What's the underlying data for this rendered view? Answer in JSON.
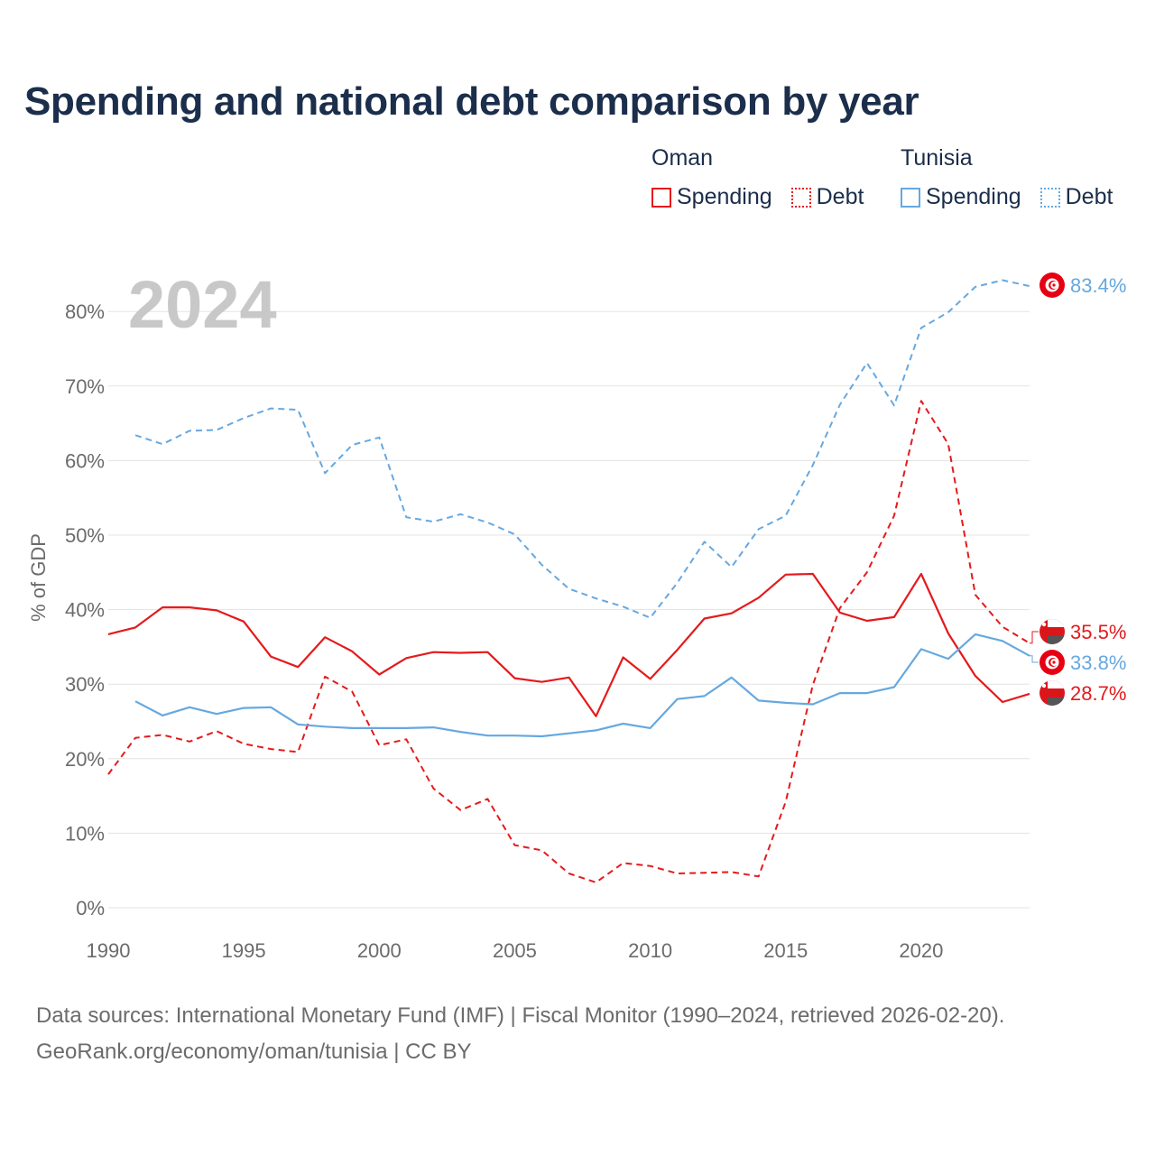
{
  "title": "Spending and national debt comparison by year",
  "legend": {
    "groups": [
      {
        "name": "Oman",
        "items": [
          {
            "label": "Spending",
            "style": "solid",
            "color": "#e41a1c"
          },
          {
            "label": "Debt",
            "style": "dotted",
            "color": "#e41a1c"
          }
        ]
      },
      {
        "name": "Tunisia",
        "items": [
          {
            "label": "Spending",
            "style": "solid",
            "color": "#66a8e0"
          },
          {
            "label": "Debt",
            "style": "dotted",
            "color": "#66a8e0"
          }
        ]
      }
    ]
  },
  "colors": {
    "oman": "#e41a1c",
    "tunisia": "#66a8e0",
    "grid": "#e3e3e3",
    "axis_text": "#6b6b6b",
    "year_watermark": "#c8c8c8"
  },
  "chart_data": {
    "type": "line",
    "year_label": "2024",
    "ylabel": "% of GDP",
    "xlim": [
      1990,
      2024
    ],
    "ylim": [
      0,
      85
    ],
    "yticks": [
      0,
      10,
      20,
      30,
      40,
      50,
      60,
      70,
      80
    ],
    "ytick_labels": [
      "0%",
      "10%",
      "20%",
      "30%",
      "40%",
      "50%",
      "60%",
      "70%",
      "80%"
    ],
    "xticks": [
      1990,
      1995,
      2000,
      2005,
      2010,
      2015,
      2020
    ],
    "xtick_labels": [
      "1990",
      "1995",
      "2000",
      "2005",
      "2010",
      "2015",
      "2020"
    ],
    "series": [
      {
        "name": "Tunisia Debt",
        "country": "Tunisia",
        "measure": "Debt",
        "color": "#66a8e0",
        "dashed": true,
        "x": [
          1991,
          1992,
          1993,
          1994,
          1995,
          1996,
          1997,
          1998,
          1999,
          2000,
          2001,
          2002,
          2003,
          2004,
          2005,
          2006,
          2007,
          2008,
          2009,
          2010,
          2011,
          2012,
          2013,
          2014,
          2015,
          2016,
          2017,
          2018,
          2019,
          2020,
          2021,
          2022,
          2023,
          2024
        ],
        "values": [
          63.4,
          62.2,
          64.0,
          64.1,
          65.7,
          67.0,
          66.8,
          58.3,
          62.1,
          63.1,
          52.4,
          51.8,
          52.8,
          51.7,
          50.1,
          46.0,
          42.8,
          41.5,
          40.4,
          38.9,
          43.6,
          49.1,
          45.7,
          50.8,
          52.6,
          59.4,
          67.5,
          73.1,
          67.4,
          77.8,
          79.9,
          83.3,
          84.2,
          83.4
        ],
        "end_label": "83.4%"
      },
      {
        "name": "Oman Debt",
        "country": "Oman",
        "measure": "Debt",
        "color": "#e41a1c",
        "dashed": true,
        "x": [
          1990,
          1991,
          1992,
          1993,
          1994,
          1995,
          1996,
          1997,
          1998,
          1999,
          2000,
          2001,
          2002,
          2003,
          2004,
          2005,
          2006,
          2007,
          2008,
          2009,
          2010,
          2011,
          2012,
          2013,
          2014,
          2015,
          2016,
          2017,
          2018,
          2019,
          2020,
          2021,
          2022,
          2023,
          2024
        ],
        "values": [
          17.9,
          22.8,
          23.2,
          22.3,
          23.7,
          22.0,
          21.3,
          20.9,
          31.0,
          29.0,
          21.8,
          22.6,
          16.0,
          13.1,
          14.6,
          8.4,
          7.7,
          4.6,
          3.4,
          6.0,
          5.6,
          4.6,
          4.7,
          4.8,
          4.2,
          14.2,
          29.9,
          40.2,
          45.0,
          52.6,
          68.0,
          62.2,
          42.0,
          37.7,
          35.5
        ],
        "end_label": "35.5%"
      },
      {
        "name": "Oman Spending",
        "country": "Oman",
        "measure": "Spending",
        "color": "#e41a1c",
        "dashed": false,
        "x": [
          1990,
          1991,
          1992,
          1993,
          1994,
          1995,
          1996,
          1997,
          1998,
          1999,
          2000,
          2001,
          2002,
          2003,
          2004,
          2005,
          2006,
          2007,
          2008,
          2009,
          2010,
          2011,
          2012,
          2013,
          2014,
          2015,
          2016,
          2017,
          2018,
          2019,
          2020,
          2021,
          2022,
          2023,
          2024
        ],
        "values": [
          36.7,
          37.6,
          40.3,
          40.3,
          39.9,
          38.4,
          33.7,
          32.3,
          36.3,
          34.4,
          31.3,
          33.5,
          34.3,
          34.2,
          34.3,
          30.8,
          30.3,
          30.9,
          25.7,
          33.6,
          30.7,
          34.6,
          38.8,
          39.5,
          41.6,
          44.7,
          44.8,
          39.6,
          38.5,
          39.0,
          44.8,
          36.8,
          31.1,
          27.6,
          28.7
        ],
        "end_label": "28.7%"
      },
      {
        "name": "Tunisia Spending",
        "country": "Tunisia",
        "measure": "Spending",
        "color": "#66a8e0",
        "dashed": false,
        "x": [
          1991,
          1992,
          1993,
          1994,
          1995,
          1996,
          1997,
          1998,
          1999,
          2000,
          2001,
          2002,
          2003,
          2004,
          2005,
          2006,
          2007,
          2008,
          2009,
          2010,
          2011,
          2012,
          2013,
          2014,
          2015,
          2016,
          2017,
          2018,
          2019,
          2020,
          2021,
          2022,
          2023,
          2024
        ],
        "values": [
          27.7,
          25.8,
          26.9,
          26.0,
          26.8,
          26.9,
          24.6,
          24.3,
          24.1,
          24.1,
          24.1,
          24.2,
          23.6,
          23.1,
          23.1,
          23.0,
          23.4,
          23.8,
          24.7,
          24.1,
          28.0,
          28.4,
          30.9,
          27.8,
          27.5,
          27.3,
          28.8,
          28.8,
          29.6,
          34.7,
          33.4,
          36.7,
          35.8,
          33.8
        ],
        "end_label": "33.8%"
      }
    ]
  },
  "footer": {
    "source": "Data sources: International Monetary Fund (IMF) | Fiscal Monitor (1990–2024, retrieved 2026-02-20).",
    "credit": "GeoRank.org/economy/oman/tunisia | CC BY"
  }
}
